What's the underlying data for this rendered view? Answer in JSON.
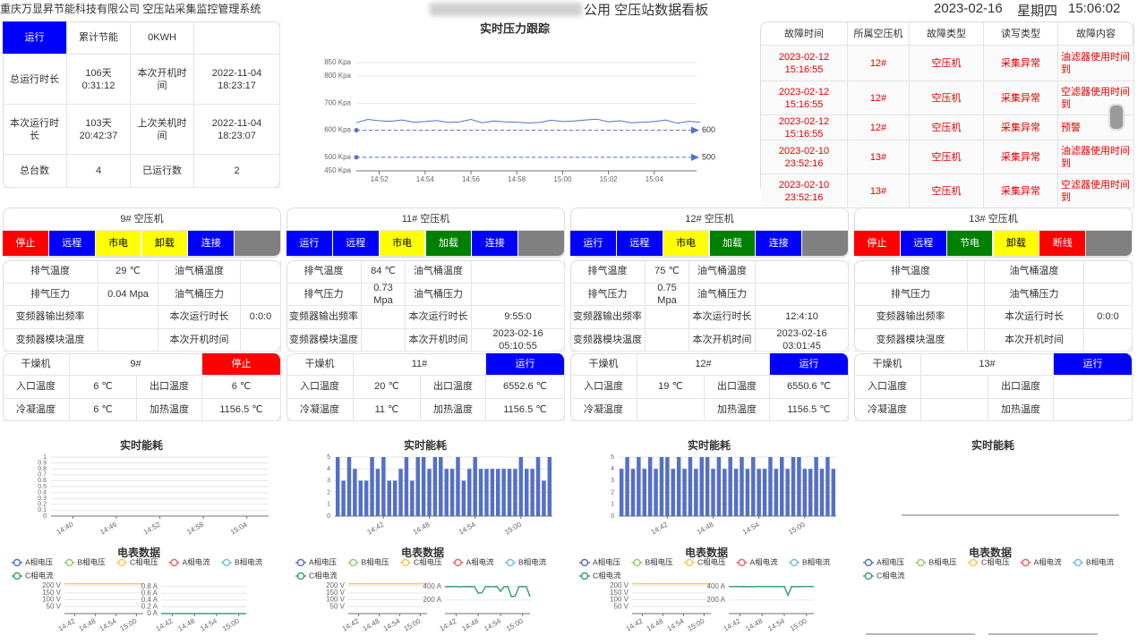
{
  "header": {
    "company_system": "重庆万显昇节能科技有限公司 空压站采集监控管理系统",
    "board_title": "公用 空压站数据看板",
    "date": "2023-02-16",
    "weekday": "星期四",
    "time": "15:06:02"
  },
  "summary": {
    "rows": [
      [
        "运行",
        "累计节能",
        "0KWH"
      ],
      [
        "总运行时长",
        "106天 0:31:12",
        "本次开机时间",
        "2022-11-04 18:23:17"
      ],
      [
        "本次运行时长",
        "103天 20:42:37",
        "上次关机时间",
        "2022-11-04 18:23:07"
      ],
      [
        "总台数",
        "4",
        "已运行数",
        "2"
      ]
    ]
  },
  "faults": {
    "headers": [
      "故障时间",
      "所属空压机",
      "故障类型",
      "读写类型",
      "故障内容"
    ],
    "rows": [
      [
        "2023-02-12 15:16:55",
        "12#",
        "空压机",
        "采集异常",
        "油滤器使用时间到"
      ],
      [
        "2023-02-12 15:16:55",
        "12#",
        "空压机",
        "采集异常",
        "空滤器使用时间到"
      ],
      [
        "2023-02-12 15:16:55",
        "12#",
        "空压机",
        "采集异常",
        "预警"
      ],
      [
        "2023-02-10 23:52:16",
        "13#",
        "空压机",
        "采集异常",
        "油滤器使用时间到"
      ],
      [
        "2023-02-10 23:52:16",
        "13#",
        "空压机",
        "采集异常",
        "空滤器使用时间到"
      ]
    ]
  },
  "compressors": [
    {
      "title": "9# 空压机",
      "status": [
        {
          "text": "停止",
          "color": "#ff0000"
        },
        {
          "text": "远程",
          "color": "#0000ff"
        },
        {
          "text": "市电",
          "color": "#ffff00"
        },
        {
          "text": "卸载",
          "color": "#ffff00"
        },
        {
          "text": "连接",
          "color": "#0000ff"
        }
      ],
      "params": [
        [
          "排气温度",
          "29 ℃",
          "油气桶温度",
          null
        ],
        [
          "排气压力",
          "0.04 Mpa",
          "油气桶压力",
          null
        ],
        [
          "变频器输出频率",
          null,
          "本次运行时长",
          "0:0:0"
        ],
        [
          "变频器模块温度",
          null,
          "本次开机时间",
          null
        ]
      ],
      "dryer": {
        "name": "干燥机",
        "unit": "9#",
        "state": {
          "text": "停止",
          "color": "#ff0000"
        },
        "rows": [
          [
            "入口温度",
            "6 ℃",
            "出口温度",
            "6 ℃"
          ],
          [
            "冷凝温度",
            "6 ℃",
            "加热温度",
            "1156.5 ℃"
          ]
        ]
      }
    },
    {
      "title": "11# 空压机",
      "status": [
        {
          "text": "运行",
          "color": "#0000ff"
        },
        {
          "text": "远程",
          "color": "#0000ff"
        },
        {
          "text": "市电",
          "color": "#ffff00"
        },
        {
          "text": "加载",
          "color": "#008000"
        },
        {
          "text": "连接",
          "color": "#0000ff"
        }
      ],
      "params": [
        [
          "排气温度",
          "84 ℃",
          "油气桶温度",
          null
        ],
        [
          "排气压力",
          "0.73 Mpa",
          "油气桶压力",
          null
        ],
        [
          "变频器输出频率",
          null,
          "本次运行时长",
          "9:55:0"
        ],
        [
          "变频器模块温度",
          null,
          "本次开机时间",
          "2023-02-16 05:10:55"
        ]
      ],
      "dryer": {
        "name": "干燥机",
        "unit": "11#",
        "state": {
          "text": "运行",
          "color": "#0000ff"
        },
        "rows": [
          [
            "入口温度",
            "20 ℃",
            "出口温度",
            "6552.6 ℃"
          ],
          [
            "冷凝温度",
            "11 ℃",
            "加热温度",
            "1156.5 ℃"
          ]
        ]
      }
    },
    {
      "title": "12# 空压机",
      "status": [
        {
          "text": "运行",
          "color": "#0000ff"
        },
        {
          "text": "远程",
          "color": "#0000ff"
        },
        {
          "text": "市电",
          "color": "#ffff00"
        },
        {
          "text": "加载",
          "color": "#008000"
        },
        {
          "text": "连接",
          "color": "#0000ff"
        }
      ],
      "params": [
        [
          "排气温度",
          "75 ℃",
          "油气桶温度",
          null
        ],
        [
          "排气压力",
          "0.75 Mpa",
          "油气桶压力",
          null
        ],
        [
          "变频器输出频率",
          null,
          "本次运行时长",
          "12:4:10"
        ],
        [
          "变频器模块温度",
          null,
          "本次开机时间",
          "2023-02-16 03:01:45"
        ]
      ],
      "dryer": {
        "name": "干燥机",
        "unit": "12#",
        "state": {
          "text": "运行",
          "color": "#0000ff"
        },
        "rows": [
          [
            "入口温度",
            "19 ℃",
            "出口温度",
            "6550.6 ℃"
          ],
          [
            "冷凝温度",
            null,
            "加热温度",
            "1156.5 ℃"
          ]
        ]
      }
    },
    {
      "title": "13# 空压机",
      "status": [
        {
          "text": "停止",
          "color": "#ff0000"
        },
        {
          "text": "远程",
          "color": "#0000ff"
        },
        {
          "text": "节电",
          "color": "#008000"
        },
        {
          "text": "卸载",
          "color": "#ffff00"
        },
        {
          "text": "断线",
          "color": "#ff0000"
        }
      ],
      "params": [
        [
          "排气温度",
          null,
          "油气桶温度",
          null
        ],
        [
          "排气压力",
          null,
          "油气桶压力",
          null
        ],
        [
          "变频器输出频率",
          null,
          "本次运行时长",
          "0:0:0"
        ],
        [
          "变频器模块温度",
          null,
          "本次开机时间",
          null
        ]
      ],
      "dryer": {
        "name": "干燥机",
        "unit": "13#",
        "state": {
          "text": "运行",
          "color": "#0000ff"
        },
        "rows": [
          [
            "入口温度",
            null,
            "出口温度",
            null
          ],
          [
            "冷凝温度",
            null,
            "加热温度",
            null
          ]
        ]
      }
    }
  ],
  "chart_data": [
    {
      "type": "line",
      "title": "实时压力跟踪",
      "categories": [
        null,
        null,
        "14:52",
        null,
        null,
        null,
        "14:54",
        null,
        null,
        null,
        "14:56",
        null,
        null,
        null,
        "14:58",
        null,
        null,
        null,
        "15:00",
        null,
        null,
        null,
        "15:02",
        null,
        null,
        null,
        "15:04",
        null,
        null,
        null,
        null
      ],
      "series": [
        {
          "color": "#5470c6",
          "values": [
            628,
            640,
            635,
            633,
            638,
            630,
            632,
            636,
            629,
            631,
            640,
            628,
            634,
            631,
            630,
            627,
            629,
            637,
            632,
            634,
            638,
            641,
            631,
            635,
            628,
            630,
            632,
            638,
            626,
            633,
            630
          ]
        }
      ],
      "mark_lines": [
        600,
        500
      ],
      "ylim": [
        450,
        850
      ],
      "yticks": [
        {
          "value": 850,
          "label": "850 Kpa"
        },
        {
          "value": 800,
          "label": "800 Kpa"
        },
        {
          "value": 700,
          "label": "700 Kpa"
        },
        {
          "value": 600,
          "label": "600 Kpa"
        },
        {
          "value": 500,
          "label": "500 Kpa"
        },
        {
          "value": 450,
          "label": "450 Kpa"
        }
      ],
      "grid": true
    },
    {
      "type": "bar",
      "title": "实时能耗",
      "categories": [
        "14:40",
        "14:46",
        "14:52",
        "14:58",
        "15:04"
      ],
      "values": [
        null,
        null,
        null,
        null,
        null
      ],
      "color": "#5470c6",
      "ylim": [
        0,
        1
      ],
      "yticks": [
        0,
        0.1,
        0.2,
        0.3,
        0.4,
        0.5,
        0.6,
        0.7,
        0.8,
        0.9,
        1
      ],
      "grid": true
    },
    {
      "type": "bar",
      "title": "实时能耗",
      "categories": [
        null,
        null,
        null,
        null,
        null,
        null,
        null,
        null,
        "14:42",
        null,
        null,
        null,
        null,
        null,
        null,
        null,
        "14:48",
        null,
        null,
        null,
        null,
        null,
        null,
        null,
        "14:54",
        null,
        null,
        null,
        null,
        null,
        null,
        null,
        "15:00",
        null,
        null,
        null,
        null,
        null
      ],
      "values": [
        5,
        3,
        5,
        4,
        3,
        3,
        5,
        4,
        5,
        3,
        3,
        4,
        5,
        3,
        5,
        5,
        4,
        5,
        5,
        4,
        4,
        5,
        3,
        4,
        5,
        4,
        4,
        4,
        4,
        4,
        4,
        4,
        5,
        4,
        4,
        5,
        3,
        5
      ],
      "color": "#5470c6",
      "ylim": [
        0,
        5
      ],
      "yticks": [
        0,
        1,
        2,
        3,
        4,
        5
      ],
      "grid": true
    },
    {
      "type": "bar",
      "title": "实时能耗",
      "categories": [
        null,
        null,
        null,
        null,
        null,
        null,
        null,
        null,
        "14:42",
        null,
        null,
        null,
        null,
        null,
        null,
        null,
        "14:48",
        null,
        null,
        null,
        null,
        null,
        null,
        null,
        "14:54",
        null,
        null,
        null,
        null,
        null,
        null,
        null,
        "15:00",
        null,
        null,
        null,
        null,
        null
      ],
      "values": [
        4,
        5,
        4,
        5,
        4,
        5,
        4,
        5,
        5,
        4,
        5,
        4,
        5,
        4,
        5,
        5,
        4,
        5,
        4,
        5,
        4,
        5,
        4,
        5,
        4,
        4,
        5,
        4,
        5,
        4,
        5,
        5,
        4,
        4,
        5,
        4,
        5,
        4
      ],
      "color": "#5470c6",
      "ylim": [
        0,
        5
      ],
      "yticks": [
        0,
        1,
        2,
        3,
        4,
        5
      ],
      "grid": true
    },
    {
      "type": "bar",
      "title": "实时能耗"
    },
    {
      "type": "line",
      "title": "电表数据",
      "series": [
        {
          "name": "A相电压",
          "color": "#5470c6"
        },
        {
          "name": "B相电压",
          "color": "#91cc75"
        },
        {
          "name": "C相电压",
          "color": "#fac858",
          "values": [
            216,
            216,
            216,
            216,
            216,
            216,
            216,
            216,
            216,
            216,
            216,
            216,
            216,
            216,
            216,
            216,
            216,
            216,
            216,
            216,
            216,
            216,
            216,
            216
          ]
        },
        {
          "name": "A相电流",
          "color": "#ee6666"
        },
        {
          "name": "B相电流",
          "color": "#73c0de"
        },
        {
          "name": "C相电流",
          "color": "#3ba272",
          "axis": "y2",
          "values": [
            0,
            0,
            0,
            0,
            0,
            0,
            0,
            0,
            0,
            0,
            0,
            0,
            0,
            0,
            0,
            0,
            0,
            0,
            0,
            0,
            0,
            0,
            0,
            0
          ]
        }
      ],
      "categories": [
        null,
        null,
        null,
        "14:42",
        null,
        null,
        null,
        null,
        null,
        "14:48",
        null,
        null,
        null,
        null,
        null,
        "14:54",
        null,
        null,
        null,
        null,
        null,
        "15:00",
        null,
        null
      ],
      "ylim": [
        0,
        220
      ],
      "yticks": [
        {
          "value": 50,
          "label": "50 V"
        },
        {
          "value": 100,
          "label": "100 V"
        },
        {
          "value": 150,
          "label": "150 V"
        },
        {
          "value": 200,
          "label": "200 V"
        }
      ],
      "y2lim": [
        0,
        0.9
      ],
      "y2ticks": [
        {
          "value": 0,
          "label": "0 A"
        },
        {
          "value": 0.2,
          "label": "0.2 A"
        },
        {
          "value": 0.4,
          "label": "0.4 A"
        },
        {
          "value": 0.6,
          "label": "0.6 A"
        },
        {
          "value": 0.8,
          "label": "0.8 A"
        }
      ]
    },
    {
      "type": "line",
      "title": "电表数据",
      "series": [
        {
          "name": "A相电压",
          "color": "#5470c6"
        },
        {
          "name": "B相电压",
          "color": "#91cc75"
        },
        {
          "name": "C相电压",
          "color": "#fac858",
          "values": [
            216,
            216,
            216,
            216,
            216,
            216,
            216,
            216,
            216,
            216,
            216,
            216,
            216,
            216,
            216,
            216,
            216,
            216,
            216,
            216,
            216,
            216,
            216,
            216
          ]
        },
        {
          "name": "A相电流",
          "color": "#ee6666"
        },
        {
          "name": "B相电流",
          "color": "#73c0de"
        },
        {
          "name": "C相电流",
          "color": "#3ba272",
          "axis": "y2",
          "values": [
            395,
            400,
            398,
            402,
            396,
            400,
            399,
            401,
            397,
            300,
            310,
            398,
            400,
            396,
            402,
            330,
            399,
            400,
            250,
            260,
            398,
            401,
            397,
            250
          ]
        }
      ],
      "categories": [
        null,
        null,
        null,
        "14:42",
        null,
        null,
        null,
        null,
        null,
        "14:48",
        null,
        null,
        null,
        null,
        null,
        "14:54",
        null,
        null,
        null,
        null,
        null,
        "15:00",
        null,
        null
      ],
      "ylim": [
        0,
        220
      ],
      "yticks": [
        {
          "value": 50,
          "label": "50 V"
        },
        {
          "value": 100,
          "label": "100 V"
        },
        {
          "value": 150,
          "label": "150 V"
        },
        {
          "value": 200,
          "label": "200 V"
        }
      ],
      "y2lim": [
        0,
        450
      ],
      "y2ticks": [
        {
          "value": 200,
          "label": "200 A"
        },
        {
          "value": 400,
          "label": "400 A"
        }
      ]
    },
    {
      "type": "line",
      "title": "电表数据",
      "series": [
        {
          "name": "A相电压",
          "color": "#5470c6"
        },
        {
          "name": "B相电压",
          "color": "#91cc75"
        },
        {
          "name": "C相电压",
          "color": "#fac858",
          "values": [
            216,
            216,
            216,
            216,
            216,
            216,
            216,
            216,
            216,
            216,
            216,
            216,
            216,
            216,
            216,
            216,
            216,
            216,
            216,
            216,
            216,
            216,
            216,
            216
          ]
        },
        {
          "name": "A相电流",
          "color": "#ee6666"
        },
        {
          "name": "B相电流",
          "color": "#73c0de"
        },
        {
          "name": "C相电流",
          "color": "#3ba272",
          "axis": "y2",
          "values": [
            400,
            398,
            402,
            399,
            401,
            397,
            400,
            398,
            402,
            399,
            400,
            401,
            398,
            400,
            399,
            402,
            270,
            400,
            398,
            401,
            399,
            400,
            402,
            398
          ]
        }
      ],
      "categories": [
        null,
        null,
        null,
        "14:42",
        null,
        null,
        null,
        null,
        null,
        "14:48",
        null,
        null,
        null,
        null,
        null,
        "14:54",
        null,
        null,
        null,
        null,
        null,
        "15:00",
        null,
        null
      ],
      "ylim": [
        0,
        220
      ],
      "yticks": [
        {
          "value": 50,
          "label": "50 V"
        },
        {
          "value": 100,
          "label": "100 V"
        },
        {
          "value": 150,
          "label": "150 V"
        },
        {
          "value": 200,
          "label": "200 V"
        }
      ],
      "y2lim": [
        0,
        450
      ],
      "y2ticks": [
        {
          "value": 200,
          "label": "200 A"
        },
        {
          "value": 400,
          "label": "400 A"
        }
      ]
    },
    {
      "type": "line",
      "title": "电表数据",
      "series": [
        {
          "name": "A相电压",
          "color": "#5470c6"
        },
        {
          "name": "B相电压",
          "color": "#91cc75"
        },
        {
          "name": "C相电压",
          "color": "#fac858"
        },
        {
          "name": "A相电流",
          "color": "#ee6666"
        },
        {
          "name": "B相电流",
          "color": "#73c0de"
        },
        {
          "name": "C相电流",
          "color": "#3ba272"
        }
      ]
    }
  ]
}
